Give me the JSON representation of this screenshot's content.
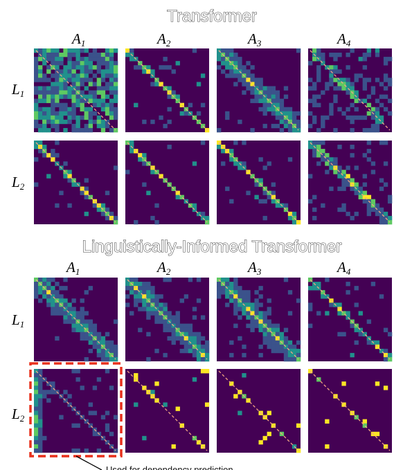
{
  "sections": [
    {
      "title": "Transformer",
      "col_labels": [
        {
          "main": "A",
          "sub": "1"
        },
        {
          "main": "A",
          "sub": "2"
        },
        {
          "main": "A",
          "sub": "3"
        },
        {
          "main": "A",
          "sub": "4"
        }
      ],
      "row_labels": [
        {
          "main": "L",
          "sub": "1"
        },
        {
          "main": "L",
          "sub": "2"
        }
      ]
    },
    {
      "title": "Linguistically-Informed Transformer",
      "col_labels": [
        {
          "main": "A",
          "sub": "1"
        },
        {
          "main": "A",
          "sub": "2"
        },
        {
          "main": "A",
          "sub": "3"
        },
        {
          "main": "A",
          "sub": "4"
        }
      ],
      "row_labels": [
        {
          "main": "L",
          "sub": "1"
        },
        {
          "main": "L",
          "sub": "2"
        }
      ]
    }
  ],
  "annotation": {
    "text": "Used for dependency prediction",
    "box_color": "#e8301c"
  },
  "colors": {
    "background": "#440154",
    "diagonal_line": "#f4a582",
    "colormap": [
      "#440154",
      "#3b528b",
      "#21918c",
      "#5ec962",
      "#fde725"
    ]
  },
  "heatmaps": [
    {
      "name": "transformer-L1-A1",
      "pattern": "diffuse"
    },
    {
      "name": "transformer-L1-A2",
      "pattern": "diagonal"
    },
    {
      "name": "transformer-L1-A3",
      "pattern": "diagonal-broad"
    },
    {
      "name": "transformer-L1-A4",
      "pattern": "scattered"
    },
    {
      "name": "transformer-L2-A1",
      "pattern": "diagonal"
    },
    {
      "name": "transformer-L2-A2",
      "pattern": "diagonal"
    },
    {
      "name": "transformer-L2-A3",
      "pattern": "diagonal"
    },
    {
      "name": "transformer-L2-A4",
      "pattern": "scattered-diagonal"
    },
    {
      "name": "lit-L1-A1",
      "pattern": "diagonal-broad"
    },
    {
      "name": "lit-L1-A2",
      "pattern": "diagonal-broad"
    },
    {
      "name": "lit-L1-A3",
      "pattern": "diagonal-broad"
    },
    {
      "name": "lit-L1-A4",
      "pattern": "diagonal"
    },
    {
      "name": "lit-L2-A1",
      "pattern": "first-column"
    },
    {
      "name": "lit-L2-A2",
      "pattern": "sparse"
    },
    {
      "name": "lit-L2-A3",
      "pattern": "sparse"
    },
    {
      "name": "lit-L2-A4",
      "pattern": "sparse"
    }
  ]
}
